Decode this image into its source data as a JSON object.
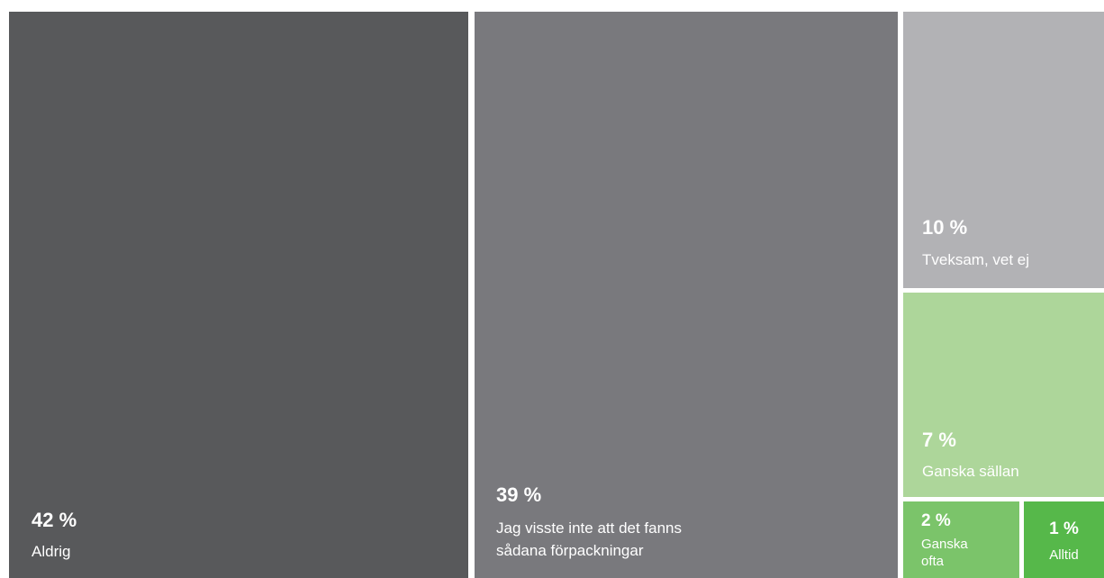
{
  "chart_data": {
    "type": "treemap",
    "title": "",
    "items": [
      {
        "key": "aldrig",
        "value_label": "42 %",
        "label": "Aldrig",
        "value": 42,
        "color": "#58595b"
      },
      {
        "key": "jag",
        "value_label": "39 %",
        "label": "Jag visste inte att det fanns\nsådana förpackningar",
        "value": 39,
        "color": "#79797d"
      },
      {
        "key": "tveksam",
        "value_label": "10 %",
        "label": "Tveksam, vet ej",
        "value": 10,
        "color": "#b2b2b5"
      },
      {
        "key": "sallan",
        "value_label": "7 %",
        "label": "Ganska sällan",
        "value": 7,
        "color": "#add69a"
      },
      {
        "key": "ofta",
        "value_label": "2 %",
        "label": "Ganska\nofta",
        "value": 2,
        "color": "#7bc46a"
      },
      {
        "key": "alltid",
        "value_label": "1 %",
        "label": "Alltid",
        "value": 1,
        "color": "#56b84a"
      }
    ]
  }
}
